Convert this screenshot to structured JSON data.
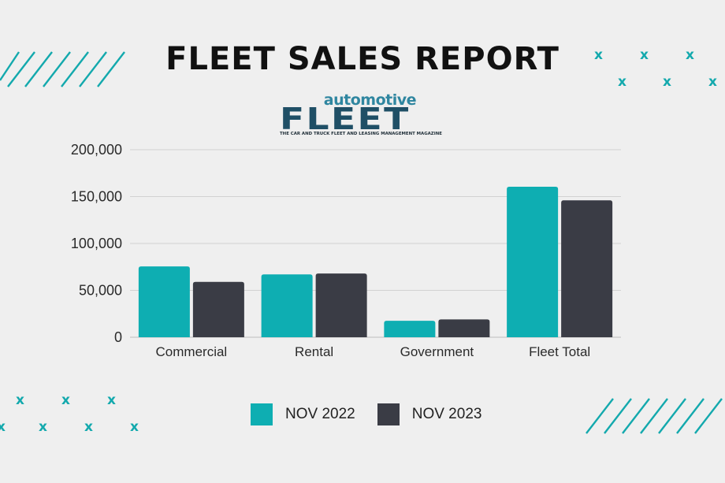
{
  "title": "FLEET SALES REPORT",
  "logo": {
    "word_top": "automotive",
    "word_main": "FLEET",
    "tagline": "THE CAR AND TRUCK FLEET AND LEASING MANAGEMENT MAGAZINE"
  },
  "colors": {
    "teal": "#0eaeb2",
    "dark": "#3a3c45",
    "accent": "#13a9ad",
    "background": "#efefef"
  },
  "legend": [
    {
      "label": "NOV 2022",
      "color": "#0eaeb2"
    },
    {
      "label": "NOV 2023",
      "color": "#3a3c45"
    }
  ],
  "chart_data": {
    "type": "bar",
    "title": "FLEET SALES REPORT",
    "categories": [
      "Commercial",
      "Rental",
      "Government",
      "Fleet Total"
    ],
    "series": [
      {
        "name": "NOV 2022",
        "values": [
          75500,
          67000,
          17500,
          160500
        ]
      },
      {
        "name": "NOV 2023",
        "values": [
          59000,
          68000,
          19000,
          146000
        ]
      }
    ],
    "yticks": [
      "0",
      "50,000",
      "100,000",
      "150,000",
      "200,000"
    ],
    "ylim": [
      0,
      200000
    ],
    "grid": true,
    "legend_position": "bottom"
  }
}
